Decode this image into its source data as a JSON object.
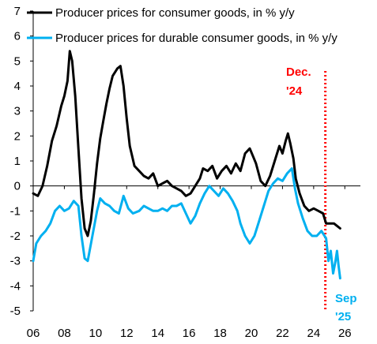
{
  "chart_data": {
    "type": "line",
    "title": "",
    "xlabel": "",
    "ylabel": "",
    "xlim": [
      2006,
      2027
    ],
    "ylim": [
      -5,
      7
    ],
    "grid": false,
    "legend_position": "top-left",
    "x_ticks": [
      {
        "value": 2006,
        "label": "06"
      },
      {
        "value": 2008,
        "label": "08"
      },
      {
        "value": 2010,
        "label": "10"
      },
      {
        "value": 2012,
        "label": "12"
      },
      {
        "value": 2014,
        "label": "14"
      },
      {
        "value": 2016,
        "label": "16"
      },
      {
        "value": 2018,
        "label": "18"
      },
      {
        "value": 2020,
        "label": "20"
      },
      {
        "value": 2022,
        "label": "22"
      },
      {
        "value": 2024,
        "label": "24"
      },
      {
        "value": 2026,
        "label": "26"
      }
    ],
    "y_ticks": [
      {
        "value": 7,
        "label": "7"
      },
      {
        "value": 6,
        "label": "6"
      },
      {
        "value": 5,
        "label": "5"
      },
      {
        "value": 4,
        "label": "4"
      },
      {
        "value": 3,
        "label": "3"
      },
      {
        "value": 2,
        "label": "2"
      },
      {
        "value": 1,
        "label": "1"
      },
      {
        "value": 0,
        "label": "0"
      },
      {
        "value": -1,
        "label": "-1"
      },
      {
        "value": -2,
        "label": "-2"
      },
      {
        "value": -3,
        "label": "-3"
      },
      {
        "value": -4,
        "label": "-4"
      },
      {
        "value": -5,
        "label": "-5"
      }
    ],
    "series": [
      {
        "name": "Producer prices for consumer goods, in % y/y",
        "color": "#000000",
        "points": [
          [
            2006.0,
            -0.3
          ],
          [
            2006.3,
            -0.4
          ],
          [
            2006.6,
            0.0
          ],
          [
            2006.9,
            0.8
          ],
          [
            2007.2,
            1.8
          ],
          [
            2007.5,
            2.4
          ],
          [
            2007.8,
            3.2
          ],
          [
            2008.0,
            3.6
          ],
          [
            2008.2,
            4.2
          ],
          [
            2008.35,
            5.4
          ],
          [
            2008.5,
            5.0
          ],
          [
            2008.7,
            3.6
          ],
          [
            2008.9,
            1.5
          ],
          [
            2009.1,
            -0.5
          ],
          [
            2009.3,
            -1.7
          ],
          [
            2009.5,
            -2.0
          ],
          [
            2009.7,
            -1.4
          ],
          [
            2009.9,
            -0.3
          ],
          [
            2010.1,
            0.9
          ],
          [
            2010.3,
            1.9
          ],
          [
            2010.5,
            2.6
          ],
          [
            2010.7,
            3.3
          ],
          [
            2010.9,
            3.9
          ],
          [
            2011.1,
            4.4
          ],
          [
            2011.4,
            4.7
          ],
          [
            2011.6,
            4.8
          ],
          [
            2011.8,
            4.0
          ],
          [
            2012.0,
            2.7
          ],
          [
            2012.2,
            1.6
          ],
          [
            2012.5,
            0.8
          ],
          [
            2012.8,
            0.6
          ],
          [
            2013.1,
            0.4
          ],
          [
            2013.4,
            0.3
          ],
          [
            2013.7,
            0.5
          ],
          [
            2014.0,
            0.0
          ],
          [
            2014.3,
            0.1
          ],
          [
            2014.6,
            0.2
          ],
          [
            2014.9,
            0.0
          ],
          [
            2015.2,
            -0.1
          ],
          [
            2015.5,
            -0.2
          ],
          [
            2015.8,
            -0.4
          ],
          [
            2016.1,
            -0.3
          ],
          [
            2016.4,
            0.0
          ],
          [
            2016.7,
            0.3
          ],
          [
            2016.9,
            0.7
          ],
          [
            2017.2,
            0.6
          ],
          [
            2017.5,
            0.8
          ],
          [
            2017.8,
            0.3
          ],
          [
            2018.1,
            0.6
          ],
          [
            2018.4,
            0.8
          ],
          [
            2018.7,
            0.5
          ],
          [
            2019.0,
            0.9
          ],
          [
            2019.3,
            0.6
          ],
          [
            2019.6,
            1.3
          ],
          [
            2019.9,
            1.5
          ],
          [
            2020.1,
            1.2
          ],
          [
            2020.3,
            0.9
          ],
          [
            2020.6,
            0.2
          ],
          [
            2020.9,
            0.0
          ],
          [
            2021.2,
            0.4
          ],
          [
            2021.5,
            1.0
          ],
          [
            2021.8,
            1.6
          ],
          [
            2022.0,
            1.3
          ],
          [
            2022.2,
            1.8
          ],
          [
            2022.35,
            2.1
          ],
          [
            2022.5,
            1.7
          ],
          [
            2022.7,
            1.1
          ],
          [
            2022.85,
            0.3
          ],
          [
            2023.1,
            -0.3
          ],
          [
            2023.4,
            -0.8
          ],
          [
            2023.7,
            -1.0
          ],
          [
            2024.0,
            -0.9
          ],
          [
            2024.3,
            -1.0
          ],
          [
            2024.6,
            -1.1
          ],
          [
            2024.8,
            -1.5
          ],
          [
            2025.0,
            -1.5
          ],
          [
            2025.3,
            -1.5
          ],
          [
            2025.5,
            -1.6
          ],
          [
            2025.7,
            -1.7
          ]
        ]
      },
      {
        "name": "Producer prices for durable consumer goods, in % y/y",
        "color": "#00b0f0",
        "points": [
          [
            2006.0,
            -3.0
          ],
          [
            2006.2,
            -2.3
          ],
          [
            2006.5,
            -2.0
          ],
          [
            2006.8,
            -1.8
          ],
          [
            2007.1,
            -1.5
          ],
          [
            2007.4,
            -1.0
          ],
          [
            2007.7,
            -0.8
          ],
          [
            2008.0,
            -1.0
          ],
          [
            2008.3,
            -0.9
          ],
          [
            2008.6,
            -0.6
          ],
          [
            2008.9,
            -0.8
          ],
          [
            2009.1,
            -2.0
          ],
          [
            2009.3,
            -2.9
          ],
          [
            2009.5,
            -3.0
          ],
          [
            2009.8,
            -2.0
          ],
          [
            2010.1,
            -1.0
          ],
          [
            2010.3,
            -0.5
          ],
          [
            2010.6,
            -0.7
          ],
          [
            2010.9,
            -0.8
          ],
          [
            2011.2,
            -1.0
          ],
          [
            2011.5,
            -1.1
          ],
          [
            2011.8,
            -0.4
          ],
          [
            2012.1,
            -0.9
          ],
          [
            2012.4,
            -1.1
          ],
          [
            2012.8,
            -1.0
          ],
          [
            2013.1,
            -0.8
          ],
          [
            2013.4,
            -0.9
          ],
          [
            2013.7,
            -1.0
          ],
          [
            2014.0,
            -1.0
          ],
          [
            2014.3,
            -0.9
          ],
          [
            2014.6,
            -1.0
          ],
          [
            2014.9,
            -0.8
          ],
          [
            2015.2,
            -0.8
          ],
          [
            2015.5,
            -0.7
          ],
          [
            2015.8,
            -1.1
          ],
          [
            2016.1,
            -1.5
          ],
          [
            2016.4,
            -1.2
          ],
          [
            2016.7,
            -0.7
          ],
          [
            2017.0,
            -0.3
          ],
          [
            2017.3,
            0.0
          ],
          [
            2017.6,
            -0.2
          ],
          [
            2017.9,
            -0.4
          ],
          [
            2018.2,
            -0.1
          ],
          [
            2018.5,
            -0.3
          ],
          [
            2018.8,
            -0.6
          ],
          [
            2019.1,
            -1.0
          ],
          [
            2019.3,
            -1.5
          ],
          [
            2019.6,
            -2.0
          ],
          [
            2019.9,
            -2.3
          ],
          [
            2020.2,
            -2.0
          ],
          [
            2020.5,
            -1.4
          ],
          [
            2020.8,
            -0.8
          ],
          [
            2021.1,
            -0.2
          ],
          [
            2021.4,
            0.1
          ],
          [
            2021.7,
            0.3
          ],
          [
            2022.0,
            0.2
          ],
          [
            2022.3,
            0.5
          ],
          [
            2022.6,
            0.7
          ],
          [
            2022.8,
            -0.1
          ],
          [
            2023.0,
            -0.7
          ],
          [
            2023.3,
            -1.3
          ],
          [
            2023.6,
            -1.8
          ],
          [
            2023.9,
            -2.0
          ],
          [
            2024.2,
            -2.0
          ],
          [
            2024.5,
            -1.8
          ],
          [
            2024.8,
            -2.1
          ],
          [
            2024.95,
            -3.0
          ],
          [
            2025.1,
            -2.6
          ],
          [
            2025.25,
            -3.5
          ],
          [
            2025.4,
            -3.0
          ],
          [
            2025.5,
            -2.6
          ],
          [
            2025.6,
            -3.2
          ],
          [
            2025.7,
            -3.7
          ]
        ]
      }
    ],
    "annotations": [
      {
        "x": 2024.75,
        "style": "dotted-vertical-line",
        "color": "#ff0000"
      },
      {
        "text_lines": [
          "Dec.",
          "'24"
        ],
        "color": "#ff0000"
      },
      {
        "text_lines": [
          "Sep",
          "'25"
        ],
        "color": "#00b0f0"
      }
    ]
  }
}
